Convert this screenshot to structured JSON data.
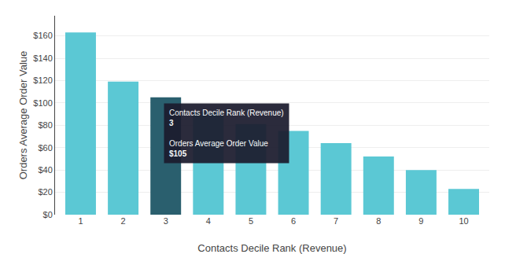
{
  "chart_data": {
    "type": "bar",
    "categories": [
      1,
      2,
      3,
      4,
      5,
      6,
      7,
      8,
      9,
      10
    ],
    "values": [
      163,
      119,
      105,
      92,
      81,
      75,
      64,
      52,
      40,
      23
    ],
    "colors": [
      "#5BC8D4",
      "#5BC8D4",
      "#2A5F6E",
      "#5BC8D4",
      "#5BC8D4",
      "#5BC8D4",
      "#5BC8D4",
      "#5BC8D4",
      "#5BC8D4",
      "#5BC8D4"
    ],
    "xlabel": "Contacts Decile Rank (Revenue)",
    "ylabel": "Orders Average Order Value",
    "ylim": [
      0,
      178
    ],
    "yticks": [
      {
        "value": 0,
        "label": "$0"
      },
      {
        "value": 20,
        "label": "$20"
      },
      {
        "value": 40,
        "label": "$40"
      },
      {
        "value": 60,
        "label": "$60"
      },
      {
        "value": 80,
        "label": "$80"
      },
      {
        "value": 100,
        "label": "$100"
      },
      {
        "value": 120,
        "label": "$120"
      },
      {
        "value": 140,
        "label": "$140"
      },
      {
        "value": 160,
        "label": "$160"
      }
    ],
    "grid": true,
    "annotations": [
      "Contacts Decile Rank (Revenue)",
      "3",
      "Orders Average Order Value",
      "$105"
    ]
  }
}
